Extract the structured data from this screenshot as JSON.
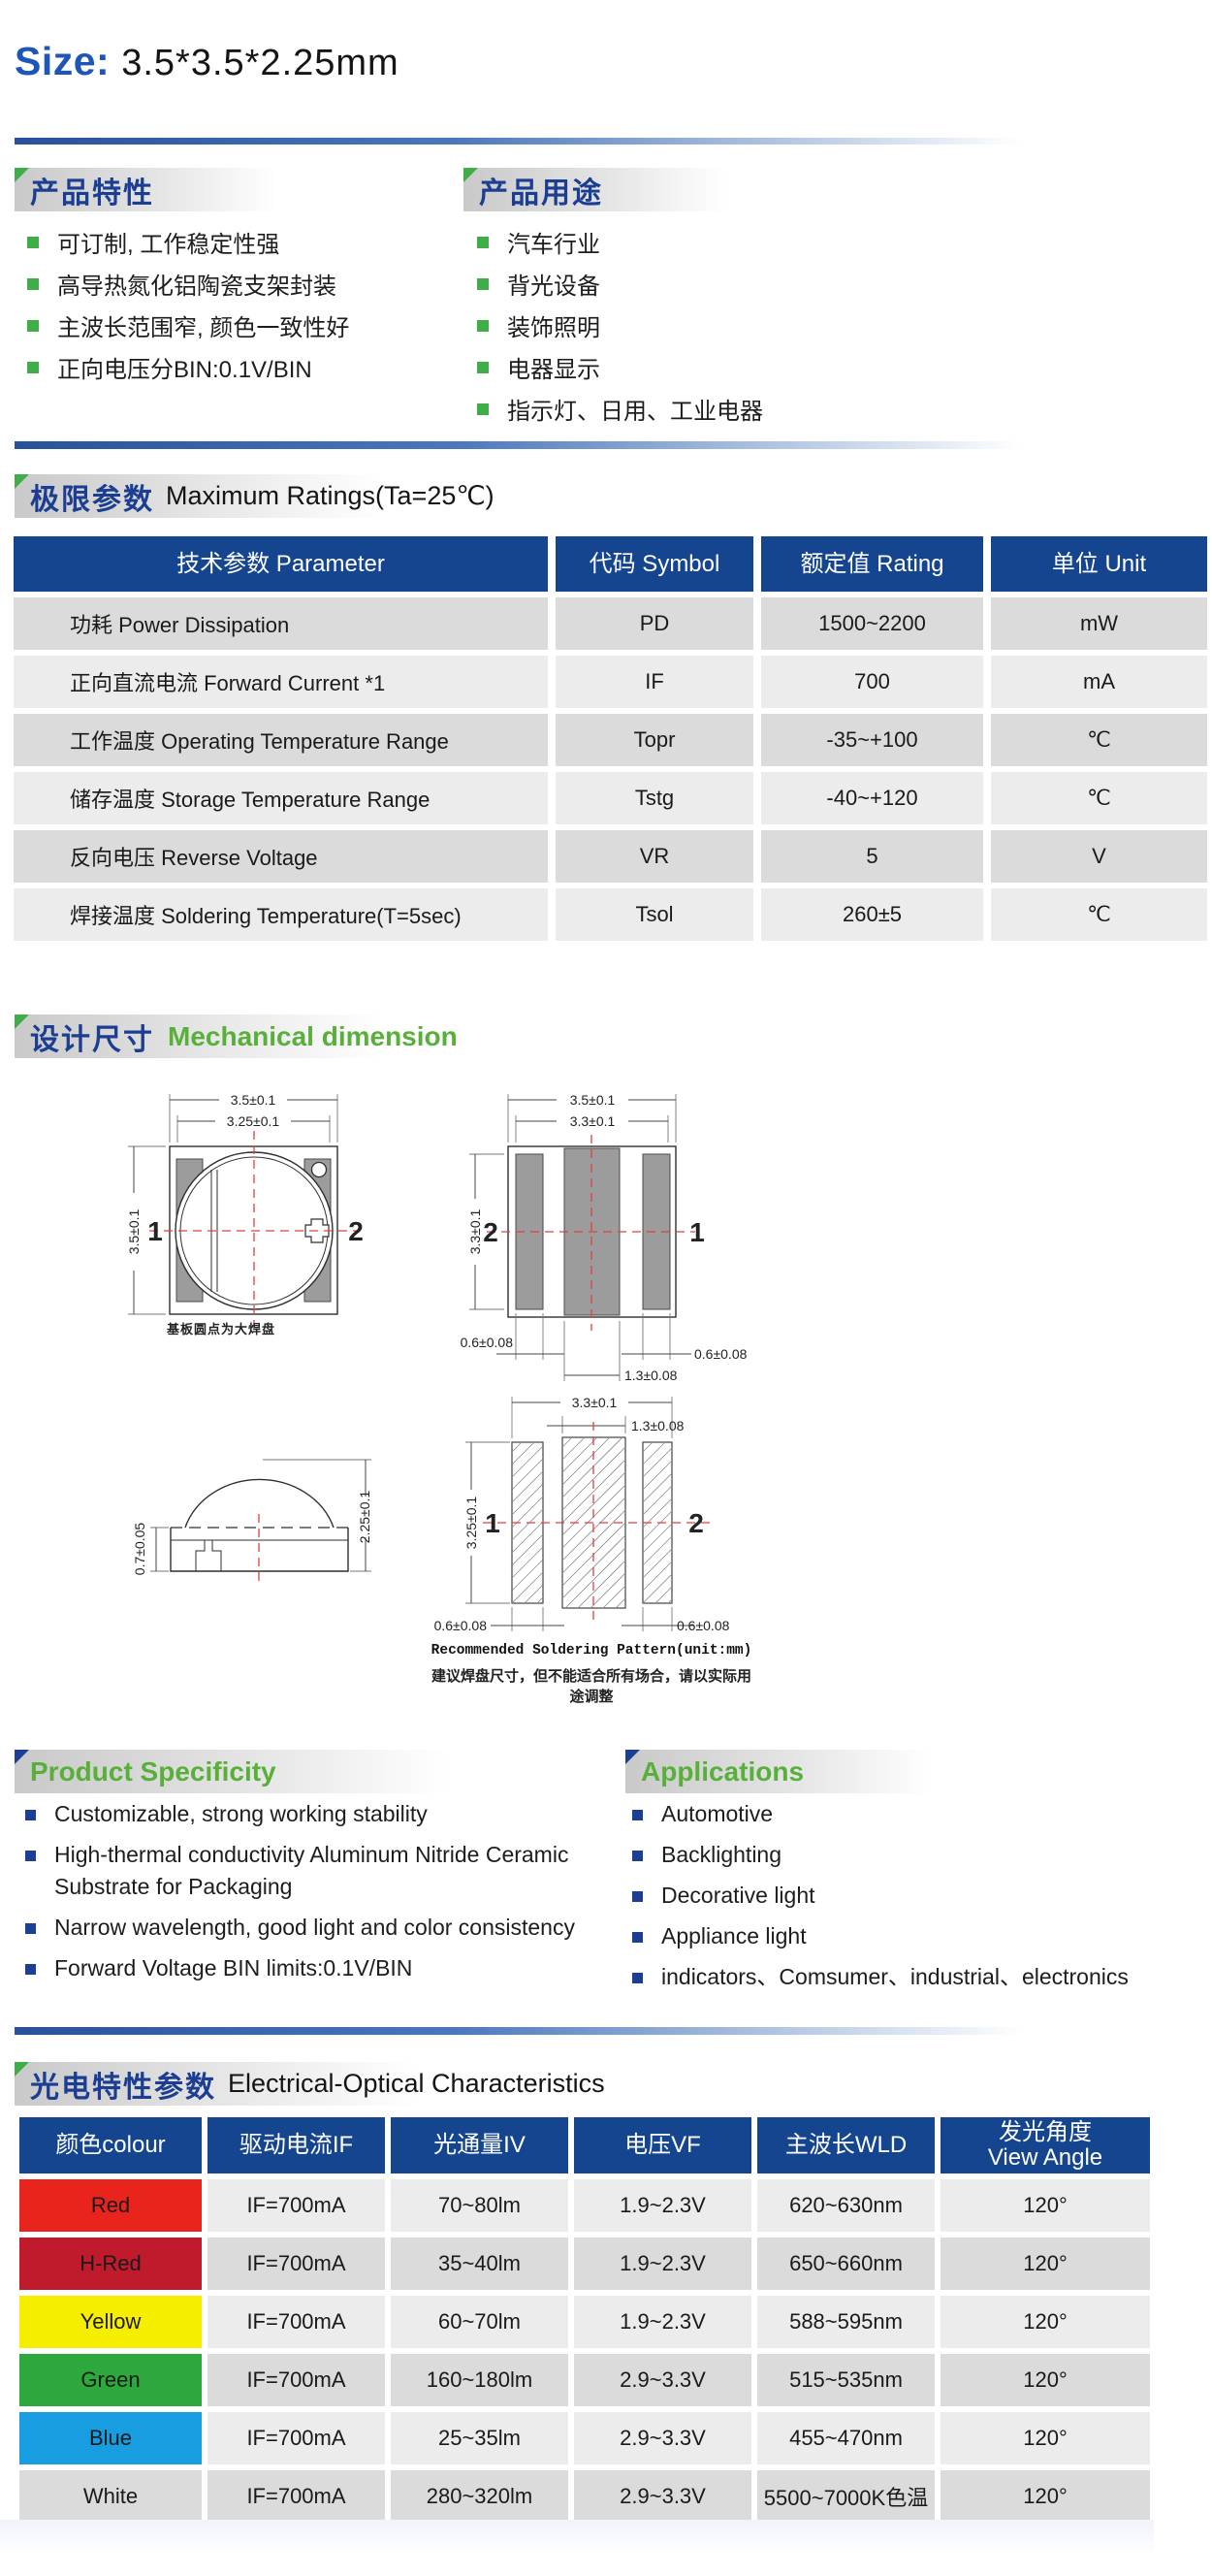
{
  "size": {
    "label": "Size:",
    "value": "3.5*3.5*2.25mm"
  },
  "features": {
    "title": "产品特性",
    "items": [
      "可订制, 工作稳定性强",
      "高导热氮化铝陶瓷支架封装",
      "主波长范围窄, 颜色一致性好",
      "正向电压分BIN:0.1V/BIN"
    ]
  },
  "uses": {
    "title": "产品用途",
    "items": [
      "汽车行业",
      "背光设备",
      "装饰照明",
      "电器显示",
      "指示灯、日用、工业电器"
    ]
  },
  "max_ratings": {
    "title_zh": "极限参数",
    "title_en": "Maximum Ratings(Ta=25℃)",
    "headers": {
      "param": "技术参数 Parameter",
      "symbol": "代码 Symbol",
      "rating": "额定值 Rating",
      "unit": "单位 Unit"
    },
    "rows": [
      {
        "param": "功耗 Power Dissipation",
        "symbol": "PD",
        "rating": "1500~2200",
        "unit": "mW"
      },
      {
        "param": "正向直流电流 Forward Current *1",
        "symbol": "IF",
        "rating": "700",
        "unit": "mA"
      },
      {
        "param": "工作温度 Operating Temperature Range",
        "symbol": "Topr",
        "rating": "-35~+100",
        "unit": "℃"
      },
      {
        "param": "储存温度 Storage Temperature Range",
        "symbol": "Tstg",
        "rating": "-40~+120",
        "unit": "℃"
      },
      {
        "param": "反向电压 Reverse Voltage",
        "symbol": "VR",
        "rating": "5",
        "unit": "V"
      },
      {
        "param": "焊接温度 Soldering Temperature(T=5sec)",
        "symbol": "Tsol",
        "rating": "260±5",
        "unit": "℃"
      }
    ]
  },
  "mechanical": {
    "title_zh": "设计尺寸",
    "title_en": "Mechanical dimension",
    "top_view": {
      "dim_outer_w": "3.5±0.1",
      "dim_inner_w": "3.25±0.1",
      "dim_h": "3.5±0.1",
      "pin_left": "1",
      "pin_right": "2",
      "caption": "基板圆点为大焊盘"
    },
    "bottom_view": {
      "dim_outer_w": "3.5±0.1",
      "dim_inner_w": "3.3±0.1",
      "dim_h": "3.3±0.1",
      "pin_left": "2",
      "pin_right": "1",
      "dim_pad_left": "0.6±0.08",
      "dim_pad_right": "0.6±0.08",
      "dim_pad_center": "1.3±0.08"
    },
    "side_view": {
      "dim_base_h": "0.7±0.05",
      "dim_total_h": "2.25±0.1"
    },
    "soldering": {
      "dim_w": "3.3±0.1",
      "dim_center": "1.3±0.08",
      "dim_h": "3.25±0.1",
      "pin_left": "1",
      "pin_right": "2",
      "dim_pad_left": "0.6±0.08",
      "dim_pad_right": "0.6±0.08",
      "caption_en": "Recommended Soldering Pattern(unit:mm)",
      "caption_zh": "建议焊盘尺寸，但不能适合所有场合，请以实际用途调整"
    }
  },
  "specificity": {
    "title": "Product Specificity",
    "items": [
      "Customizable, strong working stability",
      "High-thermal conductivity Aluminum Nitride Ceramic Substrate for Packaging",
      "Narrow wavelength, good light and color consistency",
      "Forward Voltage BIN limits:0.1V/BIN"
    ]
  },
  "applications": {
    "title": "Applications",
    "items": [
      "Automotive",
      "Backlighting",
      "Decorative light",
      "Appliance light",
      "indicators、Comsumer、industrial、electronics"
    ]
  },
  "optical": {
    "title_zh": "光电特性参数",
    "title_en": "Electrical-Optical Characteristics",
    "headers": {
      "colour": "颜色colour",
      "current": "驱动电流IF",
      "flux": "光通量IV",
      "voltage": "电压VF",
      "wavelength": "主波长WLD",
      "angle1": "发光角度",
      "angle2": "View Angle"
    },
    "rows": [
      {
        "colour": "Red",
        "swatch": "#e8241d",
        "current": "IF=700mA",
        "flux": "70~80lm",
        "voltage": "1.9~2.3V",
        "wavelength": "620~630nm",
        "angle": "120°"
      },
      {
        "colour": "H-Red",
        "swatch": "#c01b2d",
        "current": "IF=700mA",
        "flux": "35~40lm",
        "voltage": "1.9~2.3V",
        "wavelength": "650~660nm",
        "angle": "120°"
      },
      {
        "colour": "Yellow",
        "swatch": "#f6ee00",
        "current": "IF=700mA",
        "flux": "60~70lm",
        "voltage": "1.9~2.3V",
        "wavelength": "588~595nm",
        "angle": "120°"
      },
      {
        "colour": "Green",
        "swatch": "#2ca83c",
        "current": "IF=700mA",
        "flux": "160~180lm",
        "voltage": "2.9~3.3V",
        "wavelength": "515~535nm",
        "angle": "120°"
      },
      {
        "colour": "Blue",
        "swatch": "#189de0",
        "current": "IF=700mA",
        "flux": "25~35lm",
        "voltage": "2.9~3.3V",
        "wavelength": "455~470nm",
        "angle": "120°"
      },
      {
        "colour": "White",
        "swatch": "",
        "current": "IF=700mA",
        "flux": "280~320lm",
        "voltage": "2.9~3.3V",
        "wavelength": "5500~7000K色温",
        "angle": "120°"
      }
    ]
  },
  "colors": {
    "accent_blue": "#16458f",
    "accent_green": "#3fae49",
    "title_navy": "#1b3e92",
    "green_text": "#58b03a"
  }
}
